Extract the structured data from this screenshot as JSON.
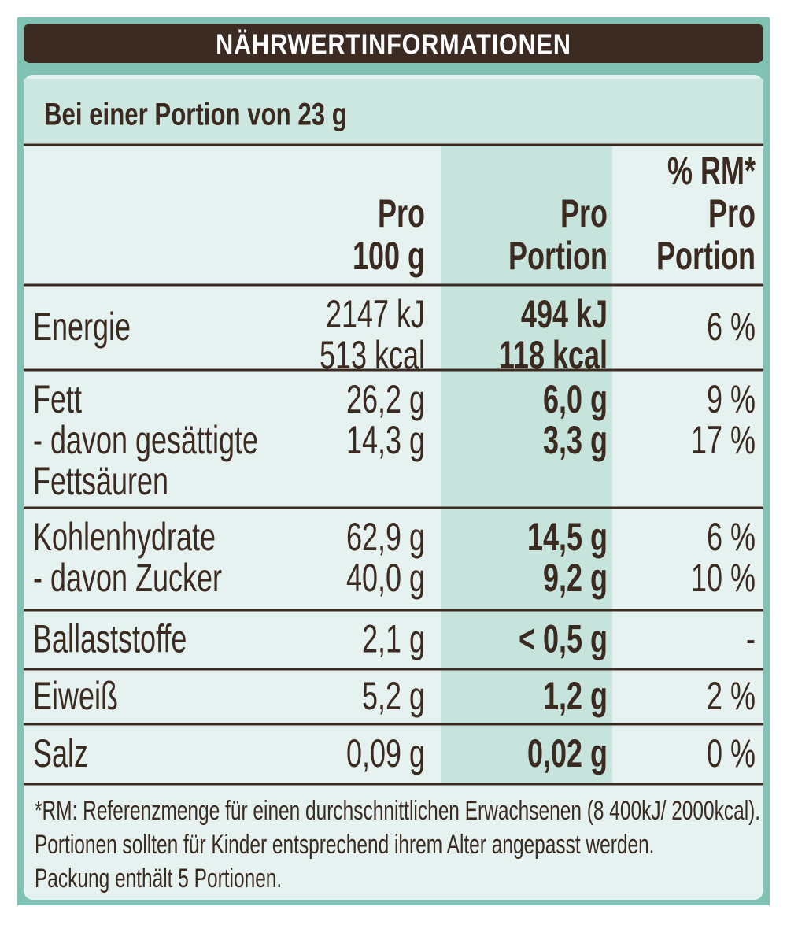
{
  "header": {
    "title": "NÄHRWERTINFORMATIONEN"
  },
  "subtitle": "Bei einer Portion von 23 g",
  "table": {
    "columns": [
      [
        "Pro",
        "100 g"
      ],
      [
        "Pro",
        "Portion"
      ],
      [
        "% RM*",
        "Pro",
        "Portion"
      ]
    ],
    "rows": [
      {
        "label": [
          "Energie"
        ],
        "per100": [
          "2147 kJ",
          "513 kcal"
        ],
        "portion": [
          "494 kJ",
          "118 kcal"
        ],
        "rm": [
          "6 %"
        ]
      },
      {
        "label": [
          "Fett",
          "- davon gesättigte",
          "Fettsäuren"
        ],
        "per100": [
          "26,2 g",
          "14,3 g"
        ],
        "portion": [
          "6,0 g",
          "3,3 g"
        ],
        "rm": [
          "9 %",
          "17 %"
        ]
      },
      {
        "label": [
          "Kohlenhydrate",
          "- davon Zucker"
        ],
        "per100": [
          "62,9 g",
          "40,0 g"
        ],
        "portion": [
          "14,5 g",
          "9,2 g"
        ],
        "rm": [
          "6 %",
          "10 %"
        ]
      },
      {
        "label": [
          "Ballaststoffe"
        ],
        "per100": [
          "2,1 g"
        ],
        "portion": [
          "< 0,5 g"
        ],
        "rm": [
          "-"
        ]
      },
      {
        "label": [
          "Eiweiß"
        ],
        "per100": [
          "5,2 g"
        ],
        "portion": [
          "1,2 g"
        ],
        "rm": [
          "2 %"
        ]
      },
      {
        "label": [
          "Salz"
        ],
        "per100": [
          "0,09 g"
        ],
        "portion": [
          "0,02 g"
        ],
        "rm": [
          "0 %"
        ]
      }
    ]
  },
  "footnote": [
    "*RM: Referenzmenge für einen durchschnittlichen Erwachsenen (8 400kJ/ 2000kcal).",
    "Portionen sollten für Kinder entsprechend ihrem Alter angepasst werden.",
    "Packung enthält 5 Portionen."
  ]
}
